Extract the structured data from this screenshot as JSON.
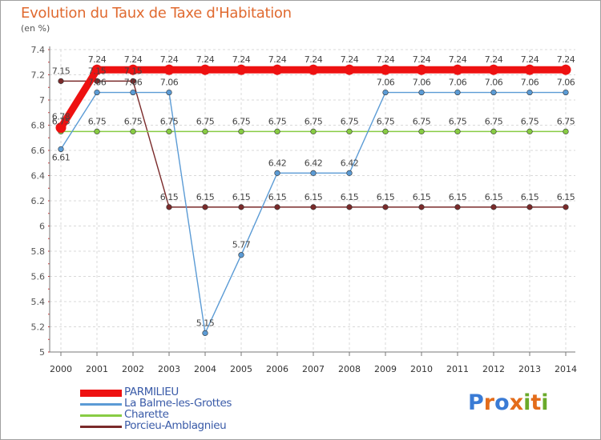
{
  "chart_data": {
    "type": "line",
    "title": "Evolution du Taux de Taxe d'Habitation",
    "ylabel": "(en %)",
    "xlabel": "",
    "ylim": [
      5,
      7.4
    ],
    "yticks": [
      "5",
      "5.2",
      "5.4",
      "5.6",
      "5.8",
      "6",
      "6.2",
      "6.4",
      "6.6",
      "6.8",
      "7",
      "7.2",
      "7.4"
    ],
    "categories": [
      "2000",
      "2001",
      "2002",
      "2003",
      "2004",
      "2005",
      "2006",
      "2007",
      "2008",
      "2009",
      "2010",
      "2011",
      "2012",
      "2013",
      "2014"
    ],
    "series": [
      {
        "name": "PARMILIEU",
        "color": "#ee1111",
        "values": [
          6.78,
          7.24,
          7.24,
          7.24,
          7.24,
          7.24,
          7.24,
          7.24,
          7.24,
          7.24,
          7.24,
          7.24,
          7.24,
          7.24,
          7.24
        ],
        "labels": [
          "6.78",
          "7.24",
          "7.24",
          "7.24",
          "7.24",
          "7.24",
          "7.24",
          "7.24",
          "7.24",
          "7.24",
          "7.24",
          "7.24",
          "7.24",
          "7.24",
          "7.24"
        ]
      },
      {
        "name": "La Balme-les-Grottes",
        "color": "#5b9bd5",
        "values": [
          6.61,
          7.06,
          7.06,
          7.06,
          5.15,
          5.77,
          6.42,
          6.42,
          6.42,
          7.06,
          7.06,
          7.06,
          7.06,
          7.06,
          7.06
        ],
        "labels": [
          "6.61",
          "7.06",
          "7.06",
          "7.06",
          "5.15",
          "5.77",
          "6.42",
          "6.42",
          "6.42",
          "7.06",
          "7.06",
          "7.06",
          "7.06",
          "7.06",
          "7.06"
        ]
      },
      {
        "name": "Charette",
        "color": "#88cc44",
        "values": [
          6.75,
          6.75,
          6.75,
          6.75,
          6.75,
          6.75,
          6.75,
          6.75,
          6.75,
          6.75,
          6.75,
          6.75,
          6.75,
          6.75,
          6.75
        ],
        "labels": [
          "6.75",
          "6.75",
          "6.75",
          "6.75",
          "6.75",
          "6.75",
          "6.75",
          "6.75",
          "6.75",
          "6.75",
          "6.75",
          "6.75",
          "6.75",
          "6.75",
          "6.75"
        ]
      },
      {
        "name": "Porcieu-Amblagnieu",
        "color": "#7a2a2a",
        "values": [
          7.15,
          7.15,
          7.15,
          6.15,
          6.15,
          6.15,
          6.15,
          6.15,
          6.15,
          6.15,
          6.15,
          6.15,
          6.15,
          6.15,
          6.15
        ],
        "labels": [
          "7.15",
          "7.15",
          "7.15",
          "6.15",
          "6.15",
          "6.15",
          "6.15",
          "6.15",
          "6.15",
          "6.15",
          "6.15",
          "6.15",
          "6.15",
          "6.15",
          "6.15"
        ]
      }
    ],
    "grid": true,
    "legend": "bottom-left"
  },
  "brand": {
    "letters": [
      "P",
      "r",
      "o",
      "x",
      "i",
      "t",
      "i"
    ],
    "colors": [
      "#3a7bd5",
      "#e36c1a",
      "#3a7bd5",
      "#e36c1a",
      "#6aaa2a",
      "#e36c1a",
      "#6aaa2a"
    ]
  }
}
